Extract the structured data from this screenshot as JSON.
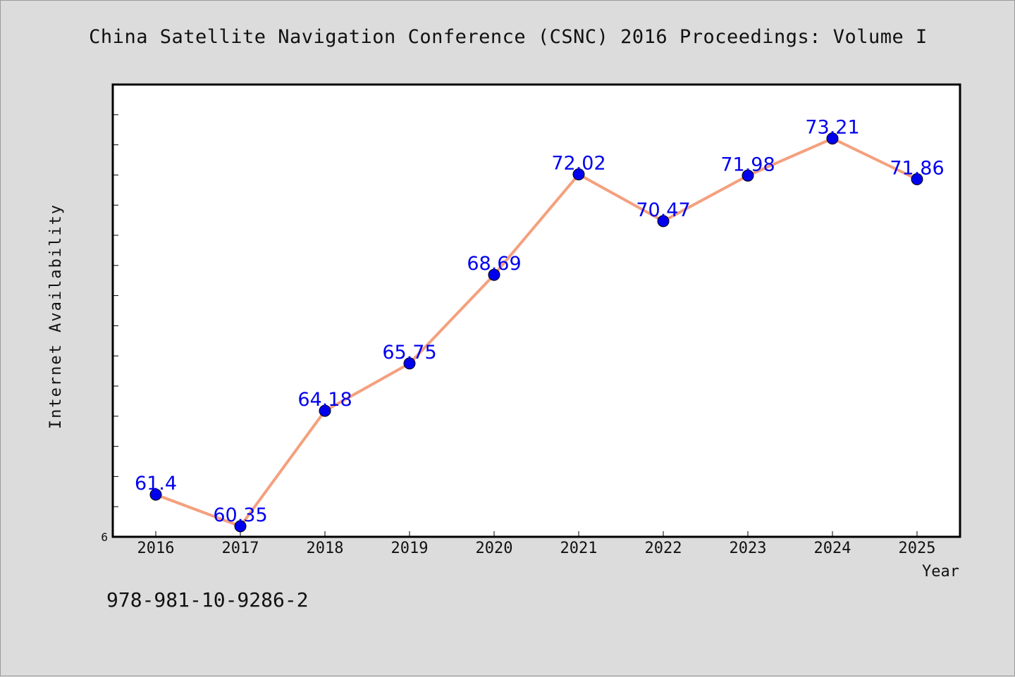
{
  "chart_data": {
    "type": "line",
    "title": "China Satellite Navigation Conference (CSNC) 2016 Proceedings: Volume I",
    "xlabel": "Year",
    "ylabel": "Internet Availability",
    "categories": [
      "2016",
      "2017",
      "2018",
      "2019",
      "2020",
      "2021",
      "2022",
      "2023",
      "2024",
      "2025"
    ],
    "series": [
      {
        "values": [
          61.4,
          60.35,
          64.18,
          65.75,
          68.69,
          72.02,
          70.47,
          71.98,
          73.21,
          71.86
        ],
        "labels": [
          "61.4",
          "60.35",
          "64.18",
          "65.75",
          "68.69",
          "72.02",
          "70.47",
          "71.98",
          "73.21",
          "71.86"
        ],
        "line_color": "#f4a07e",
        "marker_color": "#0000ee",
        "label_color": "#0000ee"
      }
    ],
    "ylim": [
      60,
      75
    ],
    "yticks": [
      60,
      61,
      62,
      63,
      64,
      65,
      66,
      67,
      68,
      69,
      70,
      71,
      72,
      73,
      74
    ],
    "ytick_labels_shown": [
      "6"
    ],
    "grid": false,
    "legend": "none"
  },
  "footer": {
    "isbn": "978-981-10-9286-2"
  },
  "colors": {
    "background": "#dcdcdc",
    "plot_background": "#ffffff",
    "axis": "#000000"
  }
}
